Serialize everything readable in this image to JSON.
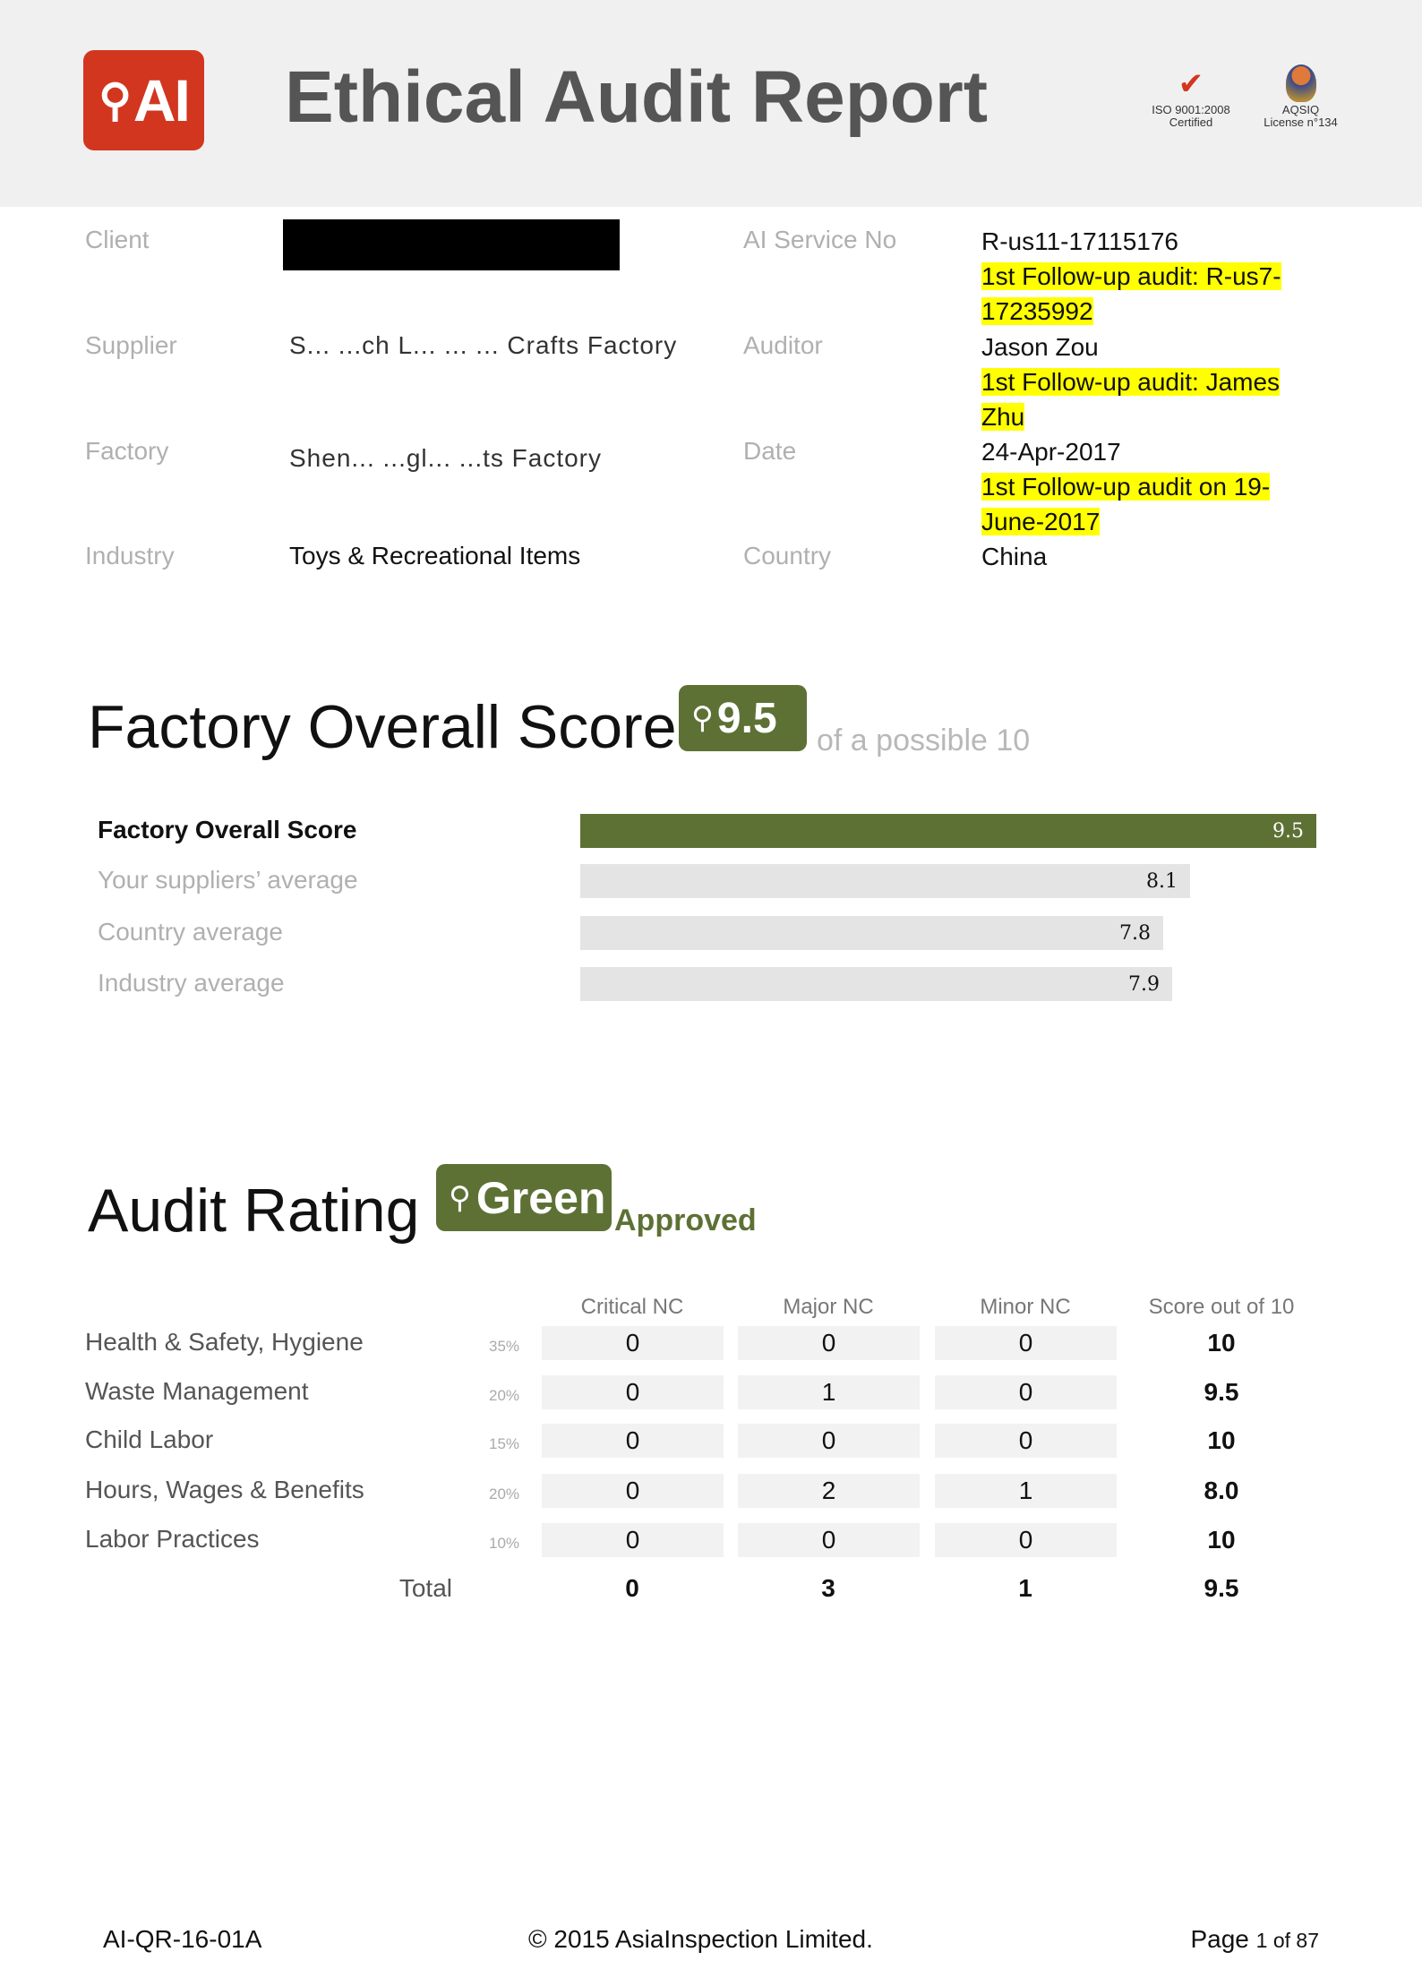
{
  "header": {
    "logo_text": "AI",
    "title": "Ethical Audit Report",
    "iso_line1": "ISO 9001:2008",
    "iso_line2": "Certified",
    "aqsiq_line1": "AQSIQ",
    "aqsiq_line2": "License n°134"
  },
  "info": {
    "client_label": "Client",
    "supplier_label": "Supplier",
    "supplier_value": "S... ...ch L... ... ... Crafts Factory",
    "factory_label": "Factory",
    "factory_value": "Shen... ...gl... ...ts Factory",
    "industry_label": "Industry",
    "industry_value": "Toys & Recreational Items",
    "service_label": "AI Service No",
    "service_value": "R-us11-17115176",
    "service_followup": "1st Follow-up audit: R-us7-17235992",
    "auditor_label": "Auditor",
    "auditor_value": "Jason Zou",
    "auditor_followup": "1st Follow-up audit: James Zhu",
    "date_label": "Date",
    "date_value": "24-Apr-2017",
    "date_followup": "1st Follow-up audit on 19-June-2017",
    "country_label": "Country",
    "country_value": "China"
  },
  "overall": {
    "title": "Factory Overall Score",
    "score": "9.5",
    "suffix": "of a possible 10",
    "bars": [
      {
        "label": "Factory Overall Score",
        "value": 9.5,
        "text": "9.5"
      },
      {
        "label": "Your suppliers’ average",
        "value": 8.1,
        "text": "8.1"
      },
      {
        "label": "Country average",
        "value": 7.8,
        "text": "7.8"
      },
      {
        "label": "Industry average",
        "value": 7.9,
        "text": "7.9"
      }
    ]
  },
  "rating": {
    "title": "Audit Rating",
    "badge": "Green",
    "status": "Approved",
    "headers": [
      "Critical NC",
      "Major NC",
      "Minor NC",
      "Score out of 10"
    ],
    "rows": [
      {
        "name": "Health & Safety, Hygiene",
        "weight": "35%",
        "critical": "0",
        "major": "0",
        "minor": "0",
        "score": "10"
      },
      {
        "name": "Waste Management",
        "weight": "20%",
        "critical": "0",
        "major": "1",
        "minor": "0",
        "score": "9.5"
      },
      {
        "name": "Child Labor",
        "weight": "15%",
        "critical": "0",
        "major": "0",
        "minor": "0",
        "score": "10"
      },
      {
        "name": "Hours, Wages & Benefits",
        "weight": "20%",
        "critical": "0",
        "major": "2",
        "minor": "1",
        "score": "8.0"
      },
      {
        "name": "Labor Practices",
        "weight": "10%",
        "critical": "0",
        "major": "0",
        "minor": "0",
        "score": "10"
      }
    ],
    "total": {
      "label": "Total",
      "critical": "0",
      "major": "3",
      "minor": "1",
      "score": "9.5"
    }
  },
  "colors": {
    "accent": "#5e7135",
    "logo": "#d2361f",
    "highlight": "#ffff00"
  },
  "footer": {
    "code": "AI-QR-16-01A",
    "copyright": "© 2015 AsiaInspection Limited.",
    "page_word": "Page",
    "page_of": "1 of 87"
  }
}
